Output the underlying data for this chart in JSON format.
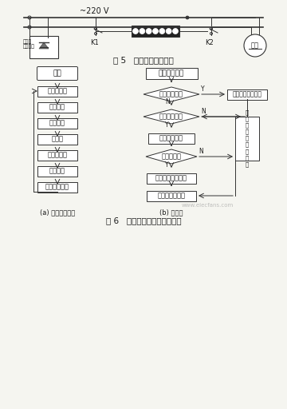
{
  "background_color": "#f5f5f0",
  "fig5_title": "图 5   水泵供电系统电路",
  "fig6_title": "图 6   数据采集系统软件结构图",
  "fig5_label_220v": "~220 V",
  "fig5_label_relay": "继电器\n输出接口",
  "fig5_label_k1": "K1",
  "fig5_label_k2": "K2",
  "fig5_label_pump": "水泵",
  "flowchart_a_title": "(a) 节点测试流程",
  "flowchart_b_title": "(b) 无线传",
  "flowchart_a_nodes": [
    "开始",
    "置系统时钟",
    "响应中断",
    "湿度测试",
    "开中断",
    "置系统时钟",
    "其他测试",
    "数据存贮处理"
  ],
  "flowchart_b_nodes": [
    "无线接收中断",
    "路由探测中断",
    "数据测试中断",
    "更新路由信息",
    "本地节点？",
    "测试数据应答上传",
    "退出中断子程序"
  ],
  "flowchart_b_right_nodes": [
    "路由转发应答处理",
    "下一跳数据查询处理"
  ],
  "text_color": "#1a1a1a",
  "box_fill": "#ffffff",
  "line_color": "#333333"
}
